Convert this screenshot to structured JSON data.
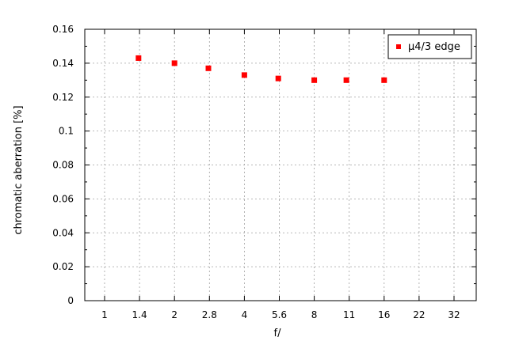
{
  "chart_data": {
    "type": "scatter",
    "title": "",
    "xlabel": "f/",
    "ylabel": "chromatic aberration [%]",
    "x_ticks": [
      "1",
      "1.4",
      "2",
      "2.8",
      "4",
      "5.6",
      "8",
      "11",
      "16",
      "22",
      "32"
    ],
    "x_scale": "log2",
    "y_ticks": [
      "0",
      "0.02",
      "0.04",
      "0.06",
      "0.08",
      "0.1",
      "0.12",
      "0.14",
      "0.16"
    ],
    "ylim": [
      0,
      0.16
    ],
    "grid": true,
    "legend_position": "top-right",
    "series": [
      {
        "name": "µ4/3 edge",
        "color": "#ff0000",
        "marker": "square",
        "x": [
          1.4,
          2,
          2.8,
          4,
          5.6,
          8,
          11,
          16
        ],
        "y": [
          0.143,
          0.14,
          0.137,
          0.133,
          0.131,
          0.13,
          0.13,
          0.13
        ]
      }
    ]
  }
}
